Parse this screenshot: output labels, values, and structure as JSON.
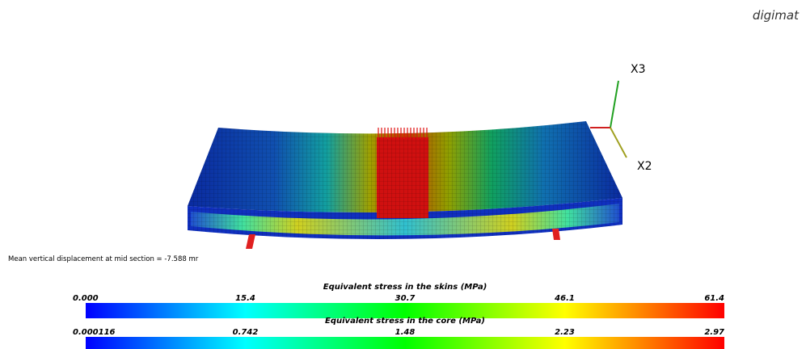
{
  "logo": "digimat",
  "axes": {
    "x3": "X3",
    "x2": "X2"
  },
  "displacement_note": "Mean vertical displacement at mid section = -7.588 mr",
  "colorbars": [
    {
      "title": "Equivalent stress in the skins (MPa)",
      "ticks": [
        "0.000",
        "15.4",
        "30.7",
        "46.1",
        "61.4"
      ]
    },
    {
      "title": "Equivalent stress in the core (MPa)",
      "ticks": [
        "0.000116",
        "0.742",
        "1.48",
        "2.23",
        "2.97"
      ]
    }
  ]
}
